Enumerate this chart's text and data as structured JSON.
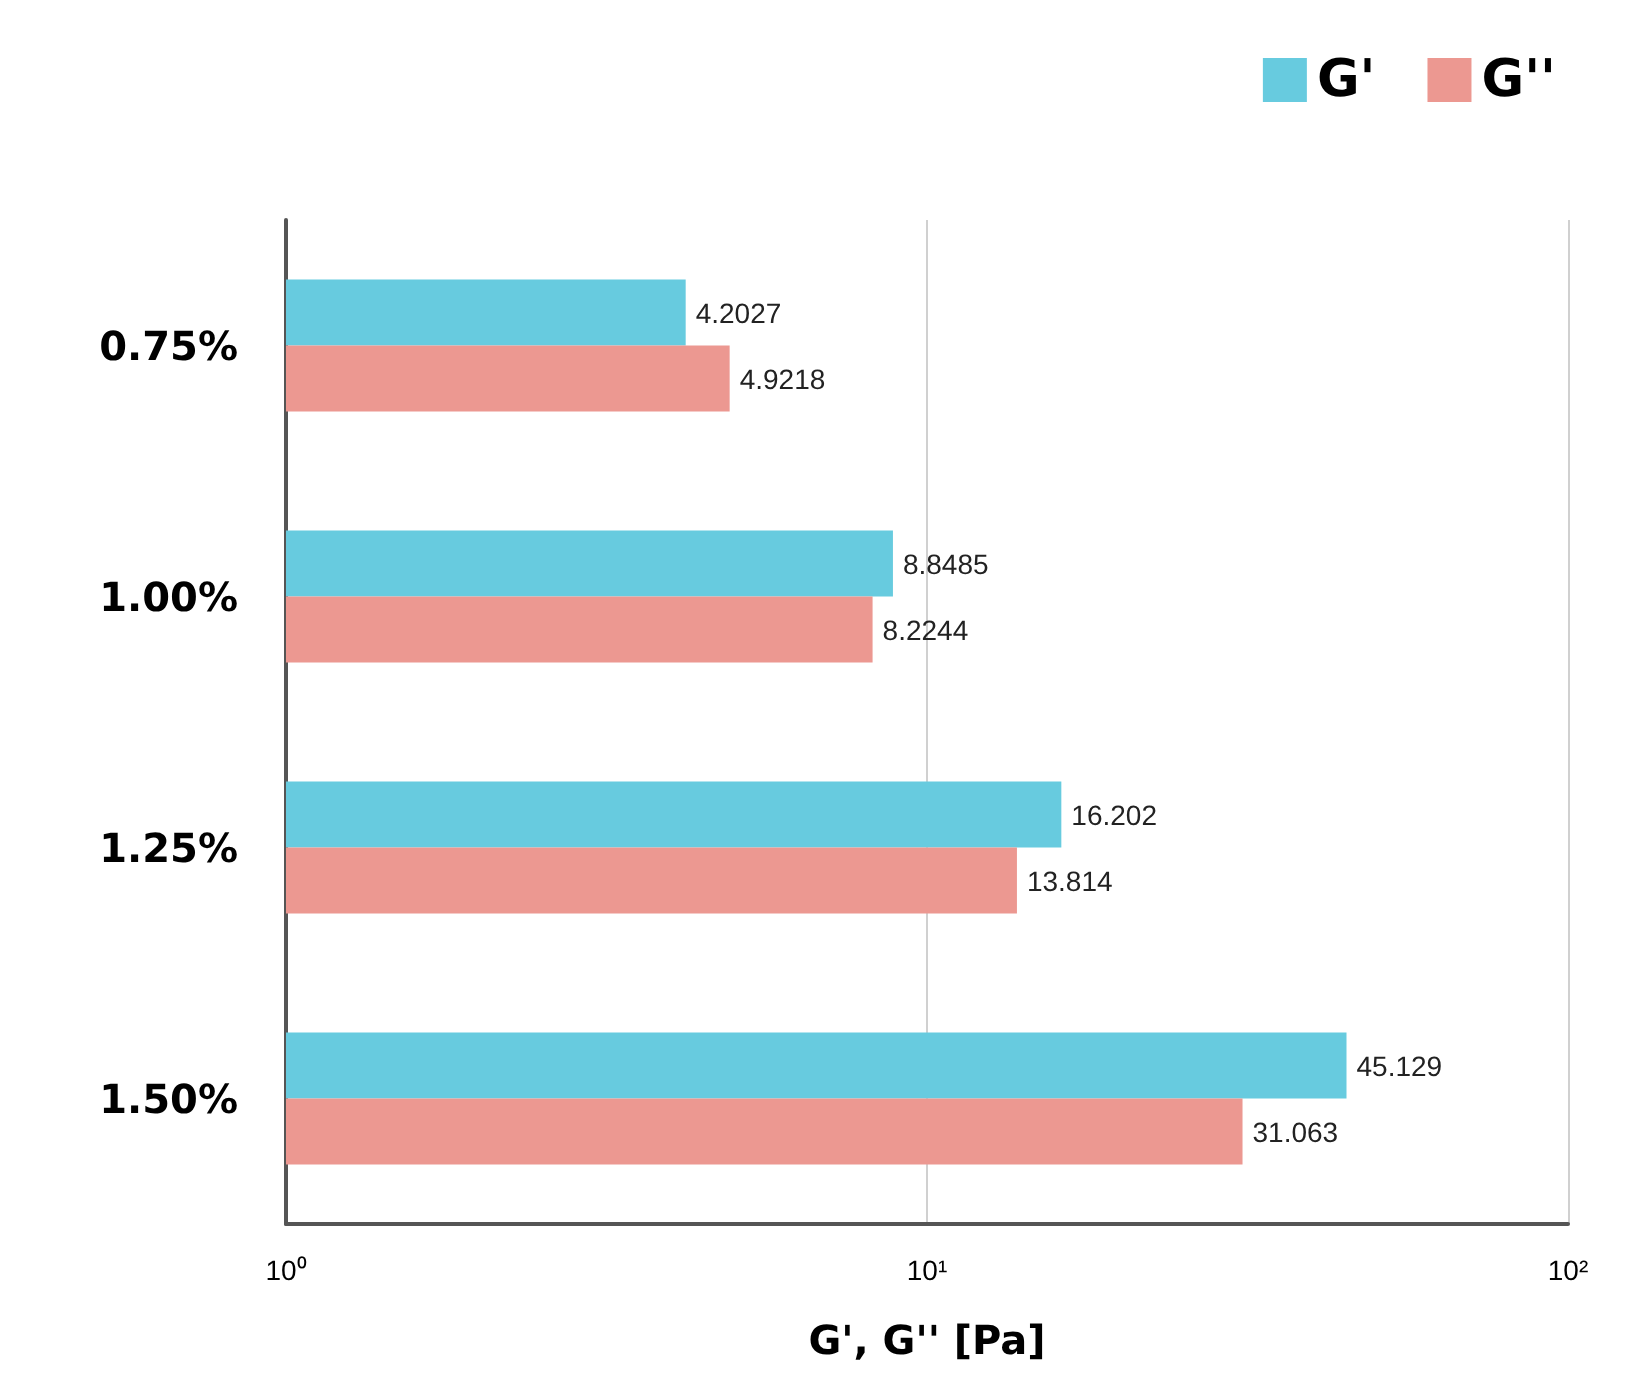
{
  "chart_data": {
    "type": "bar",
    "orientation": "horizontal",
    "log": "x",
    "xlabel": "G', G'' [Pa]",
    "categories": [
      "0.75%",
      "1.00%",
      "1.25%",
      "1.50%"
    ],
    "series": [
      {
        "name": "G'",
        "color": "#67cbdf",
        "values": [
          4.2027,
          8.8485,
          16.202,
          45.129
        ]
      },
      {
        "name": "G''",
        "color": "#ec9891",
        "values": [
          4.9218,
          8.2244,
          13.814,
          31.063
        ]
      }
    ],
    "xlim": [
      1,
      100
    ],
    "xticks": [
      {
        "value": 1,
        "label": "10⁰"
      },
      {
        "value": 10,
        "label": "10¹"
      },
      {
        "value": 100,
        "label": "10²"
      }
    ],
    "grid": "x",
    "legend": "top right",
    "data_labels": true
  }
}
